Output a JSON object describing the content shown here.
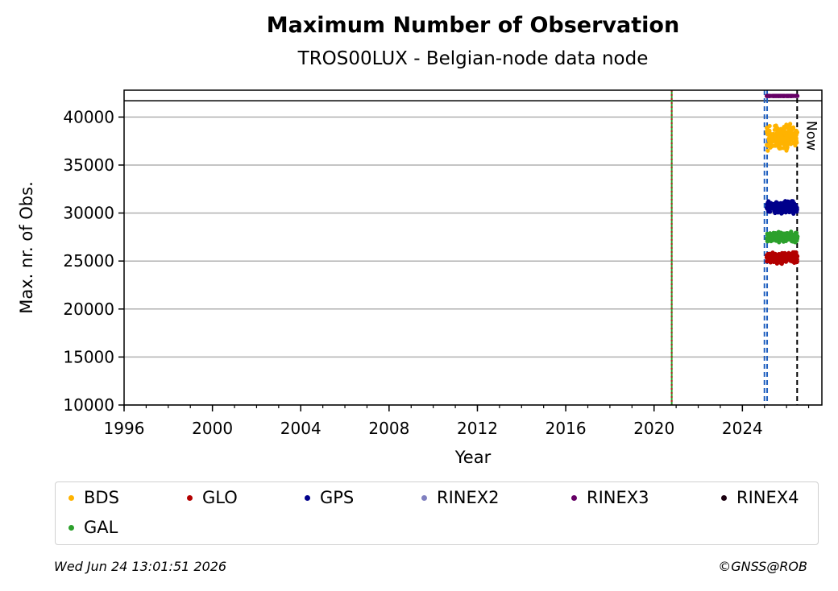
{
  "chart_data": {
    "type": "scatter",
    "title": "Maximum Number of Observation",
    "subtitle": "TROS00LUX - Belgian-node data node",
    "xlabel": "Year",
    "ylabel": "Max. nr. of Obs.",
    "xlim": [
      1996.0,
      2027.6
    ],
    "ylim": [
      10000,
      42800
    ],
    "xticks": [
      "1996",
      "2000",
      "2004",
      "2008",
      "2012",
      "2016",
      "2020",
      "2024"
    ],
    "yticks": [
      "10000",
      "15000",
      "20000",
      "25000",
      "30000",
      "35000",
      "40000"
    ],
    "grid": "horizontal",
    "now_label": "Now",
    "now_year": 2026.48,
    "vertical_lines": [
      {
        "x": 2020.8,
        "style": "solid",
        "color": "#2ca02c"
      },
      {
        "x": 2020.8,
        "style": "dotted",
        "color": "#b22222"
      },
      {
        "x": 2025.0,
        "style": "dashed",
        "color": "#1f5fbf"
      },
      {
        "x": 2025.12,
        "style": "dashed",
        "color": "#1f5fbf"
      },
      {
        "x": 2026.48,
        "style": "dashed",
        "color": "#000000"
      }
    ],
    "rinex_band_y": 41700,
    "series": [
      {
        "name": "BDS",
        "color": "#ffb300",
        "x_range": [
          2025.1,
          2026.5
        ],
        "y_center": 37900,
        "y_spread": 1500
      },
      {
        "name": "GLO",
        "color": "#b30000",
        "x_range": [
          2025.1,
          2026.5
        ],
        "y_center": 25300,
        "y_spread": 700
      },
      {
        "name": "GPS",
        "color": "#00008b",
        "x_range": [
          2025.1,
          2026.5
        ],
        "y_center": 30600,
        "y_spread": 700
      },
      {
        "name": "RINEX2",
        "color": "#8080c0",
        "x_range": [],
        "y_center": null,
        "y_spread": 0
      },
      {
        "name": "RINEX3",
        "color": "#660066",
        "x_range": [
          2025.1,
          2026.5
        ],
        "y_center": 42200,
        "y_spread": 0
      },
      {
        "name": "RINEX4",
        "color": "#1a0010",
        "x_range": [],
        "y_center": null,
        "y_spread": 0
      },
      {
        "name": "GAL",
        "color": "#2ca02c",
        "x_range": [
          2025.1,
          2026.5
        ],
        "y_center": 27500,
        "y_spread": 600
      }
    ],
    "legend_placement": "bottom"
  },
  "legend": {
    "items": [
      {
        "label": "BDS",
        "color": "#ffb300"
      },
      {
        "label": "GLO",
        "color": "#b30000"
      },
      {
        "label": "GPS",
        "color": "#00008b"
      },
      {
        "label": "RINEX2",
        "color": "#8080c0"
      },
      {
        "label": "RINEX3",
        "color": "#660066"
      },
      {
        "label": "RINEX4",
        "color": "#1a0010"
      },
      {
        "label": "GAL",
        "color": "#2ca02c"
      }
    ]
  },
  "footer": {
    "timestamp": "Wed Jun 24 13:01:51 2026",
    "credit": "©GNSS@ROB"
  }
}
